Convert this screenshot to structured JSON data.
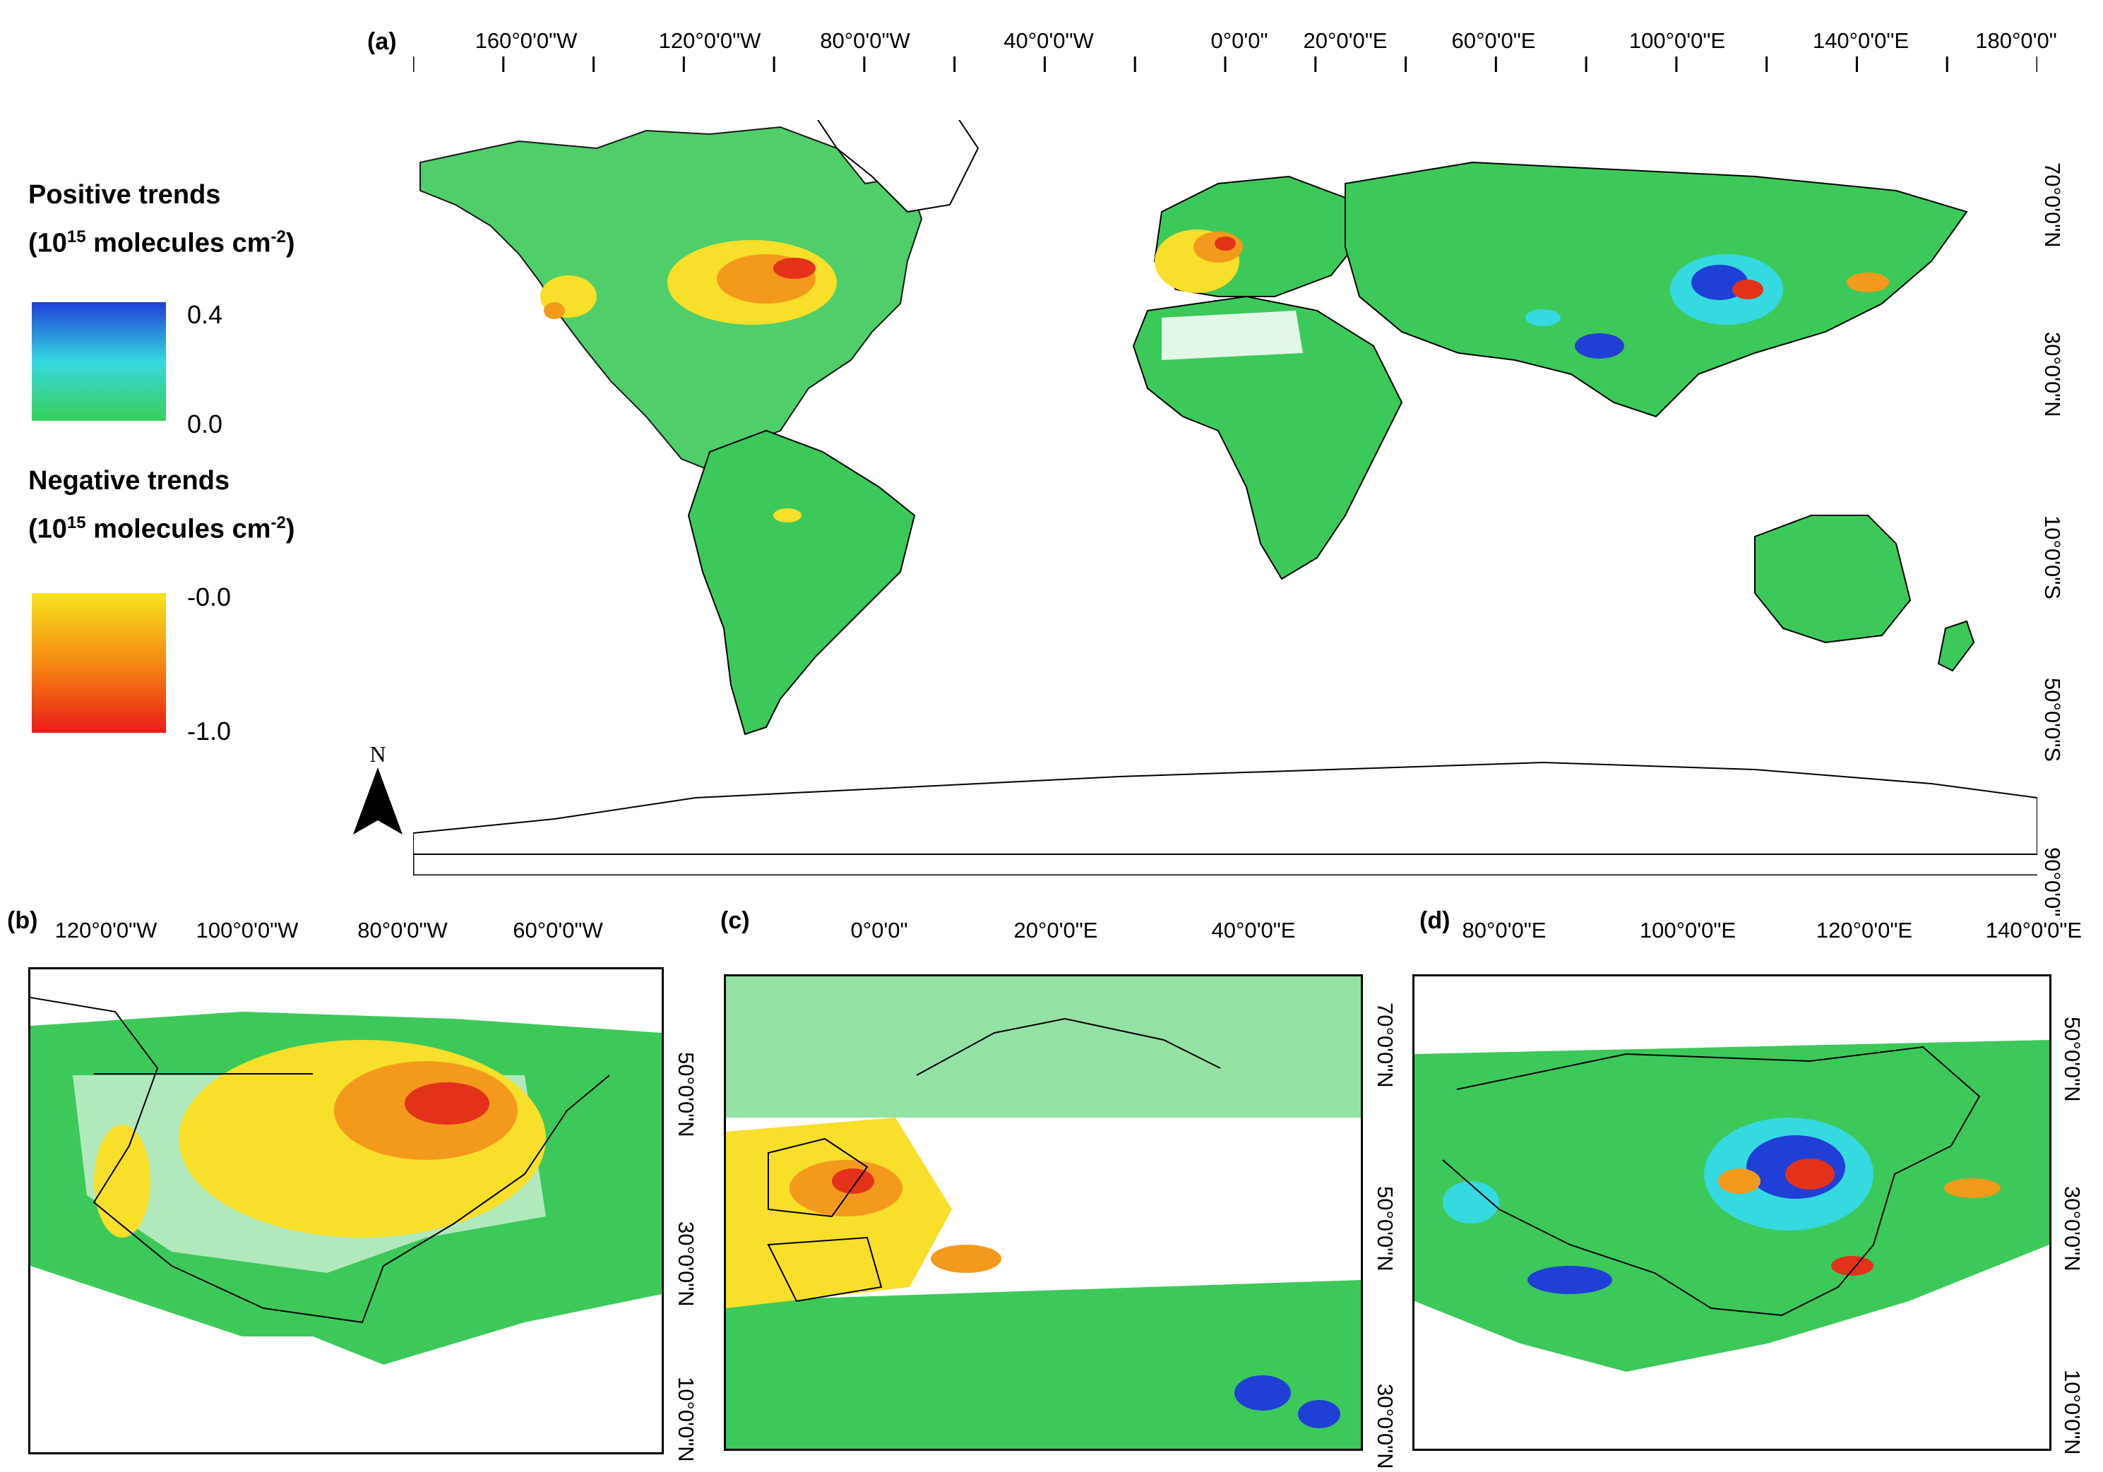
{
  "panel_a": {
    "label": "(a)",
    "top_ticks": [
      "160°0'0\"W",
      "120°0'0\"W",
      "80°0'0\"W",
      "40°0'0\"W",
      "0°0'0\"",
      "20°0'0\"E",
      "60°0'0\"E",
      "100°0'0\"E",
      "140°0'0\"E",
      "180°0'0\""
    ],
    "right_ticks": [
      "70°0'0\"N",
      "30°0'0\"N",
      "10°0'0\"S",
      "50°0'0\"S",
      "90°0'0\""
    ],
    "north_arrow": "N"
  },
  "legend": {
    "positive": {
      "title": "Positive trends",
      "units_prefix": "(10",
      "units_exp1": "15",
      "units_mid": " molecules cm",
      "units_exp2": "-2",
      "units_suffix": ")",
      "max_label": "0.4",
      "min_label": "0.0",
      "colors": [
        "#1f3fd6",
        "#35d9e0",
        "#39cf5a"
      ]
    },
    "negative": {
      "title": "Negative trends",
      "units_prefix": "(10",
      "units_exp1": "15",
      "units_mid": " molecules cm",
      "units_exp2": "-2",
      "units_suffix": ")",
      "max_label": "-0.0",
      "min_label": "-1.0",
      "colors": [
        "#f8e41c",
        "#f58a12",
        "#ec1a1a"
      ]
    }
  },
  "panel_b": {
    "label": "(b)",
    "top_ticks": [
      "120°0'0\"W",
      "100°0'0\"W",
      "80°0'0\"W",
      "60°0'0\"W"
    ],
    "right_ticks": [
      "50°0'0\"N",
      "30°0'0\"N",
      "10°0'0\"N"
    ]
  },
  "panel_c": {
    "label": "(c)",
    "top_ticks": [
      "0°0'0\"",
      "20°0'0\"E",
      "40°0'0\"E"
    ],
    "right_ticks": [
      "70°0'0\"N",
      "50°0'0\"N",
      "30°0'0\"N"
    ]
  },
  "panel_d": {
    "label": "(d)",
    "top_ticks": [
      "80°0'0\"E",
      "100°0'0\"E",
      "120°0'0\"E",
      "140°0'0\"E"
    ],
    "right_ticks": [
      "50°0'0\"N",
      "30°0'0\"N",
      "10°0'0\"N"
    ]
  },
  "colors": {
    "green": "#3cc95a",
    "cyan": "#3fd3c9",
    "blue": "#1f3fd6",
    "yellow": "#f7df2a",
    "orange": "#f39a1c",
    "red": "#e4321a",
    "coast": "#000000"
  }
}
